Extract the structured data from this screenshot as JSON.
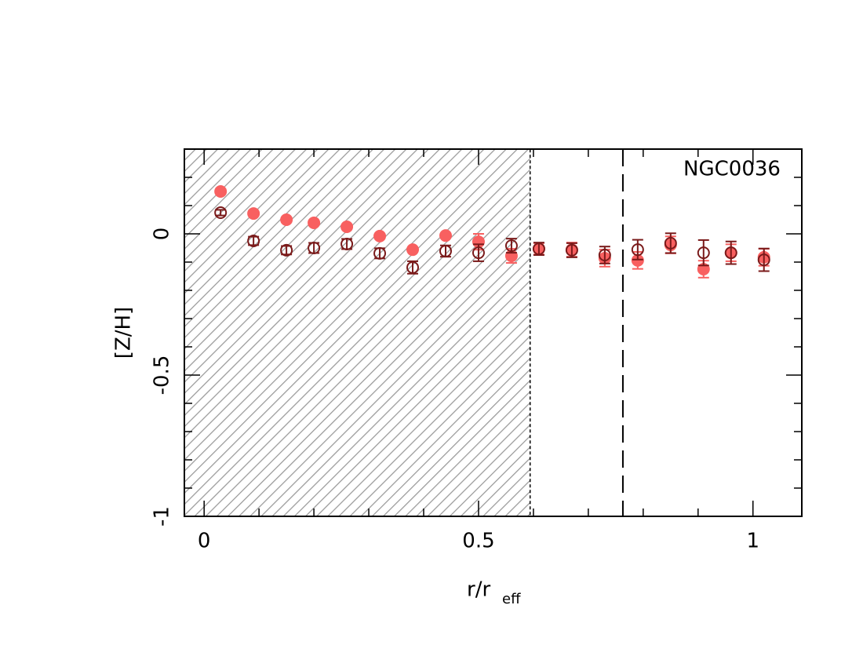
{
  "chart_data": {
    "type": "scatter",
    "annotation": "NGC0036",
    "xlabel": "r/r",
    "xlabel_sub": "eff",
    "ylabel": "[Z/H]",
    "xlim": [
      -0.036,
      1.089
    ],
    "ylim": [
      -1,
      0.3
    ],
    "xticks": [
      0,
      0.5,
      1
    ],
    "xminorticks": [
      0.1,
      0.2,
      0.3,
      0.4,
      0.6,
      0.7,
      0.8,
      0.9
    ],
    "yticks": [
      -1,
      -0.5,
      0
    ],
    "yminorticks": [
      -0.9,
      -0.8,
      -0.7,
      -0.6,
      -0.4,
      -0.3,
      -0.2,
      -0.1,
      0.1,
      0.2
    ],
    "shaded_xmax": 0.594,
    "vline": 0.763,
    "series": [
      {
        "color": "#f86060",
        "filled": true,
        "x": [
          0.03,
          0.09,
          0.15,
          0.2,
          0.26,
          0.32,
          0.38,
          0.44,
          0.5,
          0.56,
          0.61,
          0.67,
          0.73,
          0.79,
          0.85,
          0.91,
          0.96,
          1.02
        ],
        "values": [
          0.15,
          0.072,
          0.05,
          0.039,
          0.025,
          -0.008,
          -0.056,
          -0.006,
          -0.028,
          -0.078,
          -0.053,
          -0.056,
          -0.086,
          -0.094,
          -0.039,
          -0.125,
          -0.067,
          -0.083
        ],
        "errors": [
          0.008,
          0.008,
          0.008,
          0.008,
          0.008,
          0.008,
          0.008,
          0.008,
          0.028,
          0.025,
          0.02,
          0.025,
          0.03,
          0.03,
          0.03,
          0.03,
          0.03,
          0.03
        ]
      },
      {
        "color": "#7a1a1a",
        "filled": false,
        "x": [
          0.03,
          0.09,
          0.15,
          0.2,
          0.26,
          0.32,
          0.38,
          0.44,
          0.5,
          0.56,
          0.61,
          0.67,
          0.73,
          0.79,
          0.85,
          0.91,
          0.96,
          1.02
        ],
        "values": [
          0.075,
          -0.025,
          -0.058,
          -0.05,
          -0.036,
          -0.069,
          -0.119,
          -0.061,
          -0.067,
          -0.042,
          -0.053,
          -0.058,
          -0.075,
          -0.056,
          -0.033,
          -0.067,
          -0.067,
          -0.092
        ],
        "errors": [
          0.01,
          0.015,
          0.015,
          0.018,
          0.018,
          0.018,
          0.022,
          0.02,
          0.03,
          0.025,
          0.022,
          0.025,
          0.03,
          0.035,
          0.035,
          0.045,
          0.04,
          0.04
        ]
      }
    ]
  }
}
